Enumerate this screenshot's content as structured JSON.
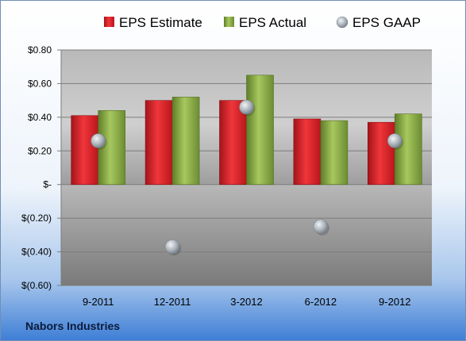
{
  "company": "Nabors Industries",
  "colors": {
    "estimate": "#e0262b",
    "actual": "#8fb04a",
    "gaap": "#9aa4ae"
  },
  "chart_data": {
    "type": "bar",
    "categories": [
      "9-2011",
      "12-2011",
      "3-2012",
      "6-2012",
      "9-2012"
    ],
    "series": [
      {
        "name": "EPS Estimate",
        "kind": "bar",
        "values": [
          0.41,
          0.5,
          0.5,
          0.39,
          0.37
        ]
      },
      {
        "name": "EPS Actual",
        "kind": "bar",
        "values": [
          0.44,
          0.52,
          0.65,
          0.38,
          0.42
        ]
      },
      {
        "name": "EPS GAAP",
        "kind": "scatter",
        "values": [
          0.26,
          -0.37,
          0.46,
          -0.25,
          0.26
        ]
      }
    ],
    "ylim": [
      -0.6,
      0.8
    ],
    "yticks": [
      0.8,
      0.6,
      0.4,
      0.2,
      0,
      -0.2,
      -0.4,
      -0.6
    ],
    "ytick_labels": [
      "$0.80",
      "$0.60",
      "$0.40",
      "$0.20",
      "$-",
      "$(0.20)",
      "$(0.40)",
      "$(0.60)"
    ],
    "grid": true,
    "legend_position": "top"
  }
}
